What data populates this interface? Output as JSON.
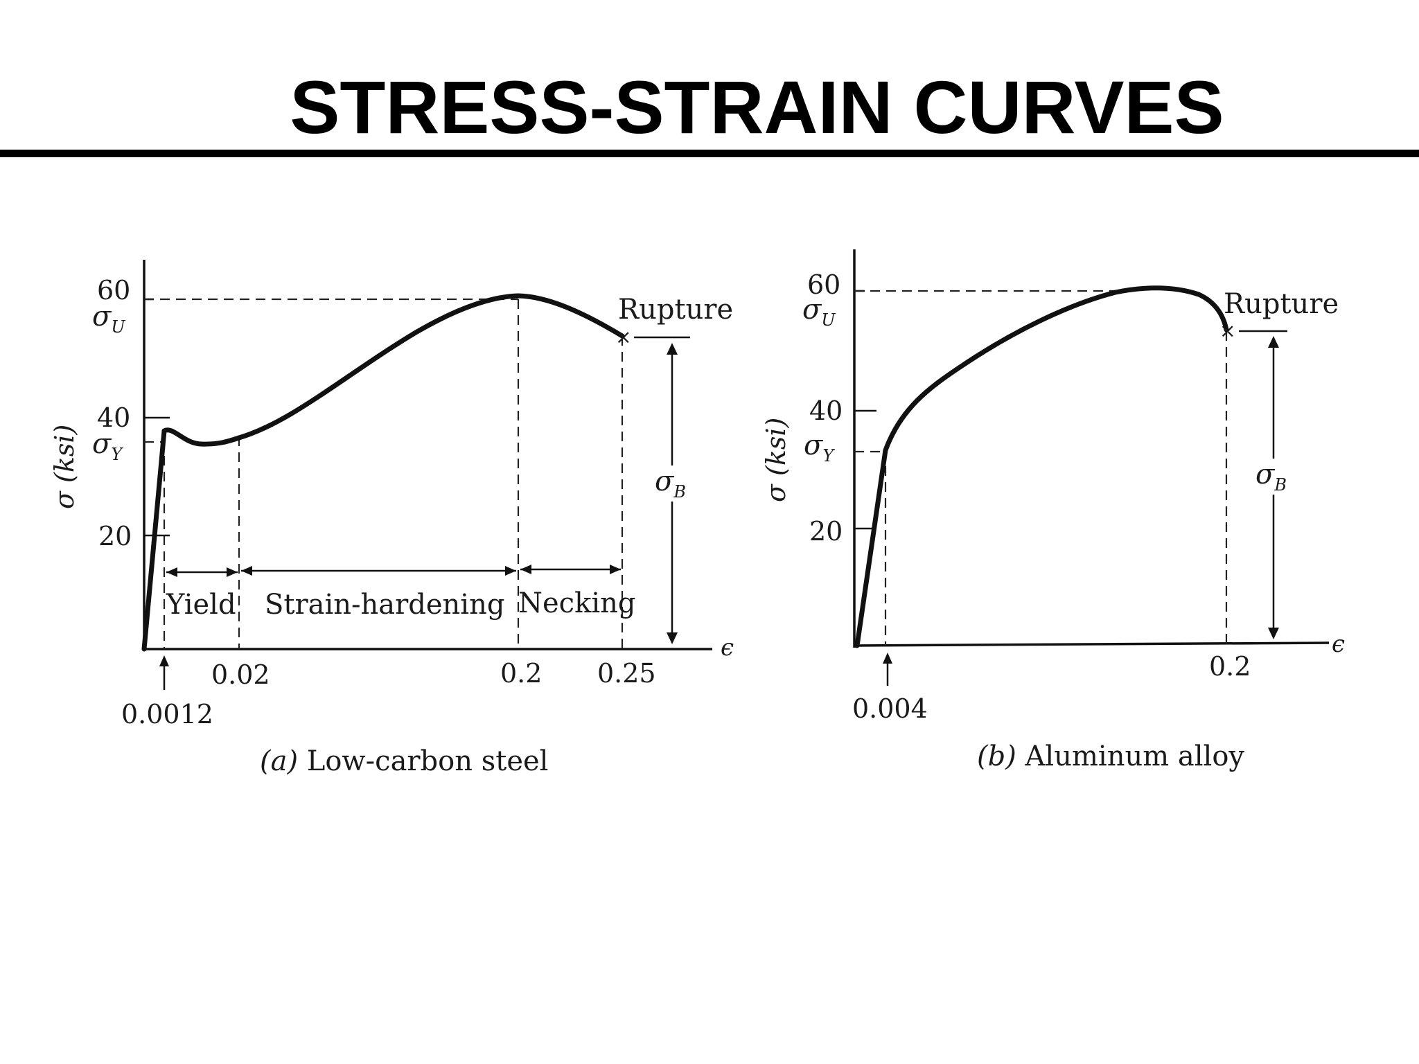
{
  "slide": {
    "title": "STRESS-STRAIN CURVES"
  },
  "chart_data": [
    {
      "type": "line",
      "caption_prefix": "(a)",
      "caption": "Low-carbon steel",
      "ylabel": "σ (ksi)",
      "xlabel": "ϵ",
      "ylim": [
        0,
        66
      ],
      "y_ticks": [
        "20",
        "40",
        "60"
      ],
      "y_symbols": {
        "ultimate": "σU",
        "yield": "σY"
      },
      "x_ticks": [
        "0.0012",
        "0.02",
        "0.2",
        "0.25"
      ],
      "regions": [
        "Yield",
        "Strain-hardening",
        "Necking"
      ],
      "annotations": {
        "rupture": "Rupture",
        "breaking_stress": "σB"
      },
      "series": [
        {
          "x": [
            0,
            0.0012,
            0.004,
            0.01,
            0.02,
            0.05,
            0.08,
            0.12,
            0.16,
            0.2,
            0.22,
            0.235,
            0.25
          ],
          "y": [
            0,
            36.5,
            35,
            35,
            36,
            38.5,
            42.5,
            49,
            56,
            60,
            59,
            57,
            54
          ]
        }
      ]
    },
    {
      "type": "line",
      "caption_prefix": "(b)",
      "caption": "Aluminum alloy",
      "ylabel": "σ (ksi)",
      "xlabel": "ϵ",
      "ylim": [
        0,
        66
      ],
      "y_ticks": [
        "20",
        "40",
        "60"
      ],
      "y_symbols": {
        "ultimate": "σU",
        "yield": "σY"
      },
      "x_ticks": [
        "0.004",
        "0.2"
      ],
      "annotations": {
        "rupture": "Rupture",
        "breaking_stress": "σB"
      },
      "series": [
        {
          "x": [
            0,
            0.004,
            0.008,
            0.02,
            0.04,
            0.07,
            0.1,
            0.13,
            0.16,
            0.18,
            0.2
          ],
          "y": [
            0,
            33,
            36,
            40,
            44.5,
            50,
            55,
            58.5,
            60,
            59,
            54.5
          ]
        }
      ]
    }
  ]
}
